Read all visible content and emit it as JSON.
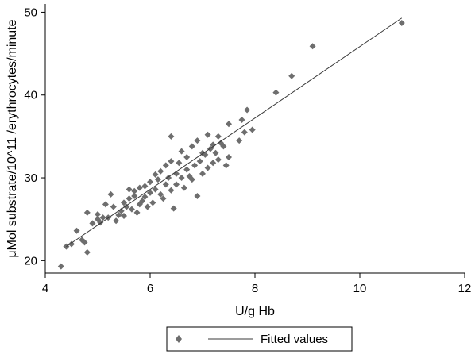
{
  "chart_data": {
    "type": "scatter",
    "title": "",
    "xlabel": "U/g Hb",
    "ylabel": "μMol substrate/10^11 /erythrocytes/minute",
    "xlim": [
      4,
      12
    ],
    "ylim": [
      18.5,
      51
    ],
    "x_ticks": [
      "4",
      "6",
      "8",
      "10",
      "12"
    ],
    "y_ticks": [
      "20",
      "30",
      "40",
      "50"
    ],
    "grid": false,
    "legend_position": "bottom",
    "marker_color": "#6e6e6e",
    "line_color": "#3a3a3a",
    "series": [
      {
        "type": "scatter",
        "marker": "diamond",
        "points": [
          [
            4.3,
            19.3
          ],
          [
            4.4,
            21.7
          ],
          [
            4.5,
            22.0
          ],
          [
            4.6,
            23.6
          ],
          [
            4.7,
            22.5
          ],
          [
            4.75,
            22.2
          ],
          [
            4.8,
            21.0
          ],
          [
            4.8,
            25.8
          ],
          [
            4.9,
            24.5
          ],
          [
            5.0,
            25.0
          ],
          [
            5.0,
            25.6
          ],
          [
            5.05,
            24.6
          ],
          [
            5.1,
            25.2
          ],
          [
            5.15,
            26.8
          ],
          [
            5.2,
            25.2
          ],
          [
            5.25,
            28.0
          ],
          [
            5.3,
            26.5
          ],
          [
            5.35,
            24.8
          ],
          [
            5.4,
            25.5
          ],
          [
            5.45,
            26.0
          ],
          [
            5.5,
            25.4
          ],
          [
            5.5,
            27.0
          ],
          [
            5.55,
            26.5
          ],
          [
            5.6,
            27.5
          ],
          [
            5.6,
            28.6
          ],
          [
            5.65,
            26.2
          ],
          [
            5.7,
            27.8
          ],
          [
            5.7,
            28.4
          ],
          [
            5.75,
            25.8
          ],
          [
            5.8,
            26.8
          ],
          [
            5.8,
            28.8
          ],
          [
            5.85,
            27.2
          ],
          [
            5.9,
            29.0
          ],
          [
            5.9,
            27.7
          ],
          [
            5.95,
            26.5
          ],
          [
            6.0,
            28.2
          ],
          [
            6.0,
            29.5
          ],
          [
            6.05,
            27.0
          ],
          [
            6.1,
            28.6
          ],
          [
            6.1,
            30.4
          ],
          [
            6.15,
            29.8
          ],
          [
            6.2,
            28.0
          ],
          [
            6.2,
            30.8
          ],
          [
            6.25,
            27.5
          ],
          [
            6.3,
            29.2
          ],
          [
            6.3,
            31.5
          ],
          [
            6.35,
            30.0
          ],
          [
            6.4,
            28.5
          ],
          [
            6.4,
            32.0
          ],
          [
            6.4,
            35.0
          ],
          [
            6.45,
            26.3
          ],
          [
            6.5,
            30.5
          ],
          [
            6.5,
            29.2
          ],
          [
            6.55,
            31.8
          ],
          [
            6.6,
            30.0
          ],
          [
            6.6,
            33.2
          ],
          [
            6.65,
            28.8
          ],
          [
            6.7,
            31.0
          ],
          [
            6.7,
            32.5
          ],
          [
            6.75,
            30.2
          ],
          [
            6.8,
            33.8
          ],
          [
            6.8,
            29.8
          ],
          [
            6.85,
            31.5
          ],
          [
            6.9,
            27.8
          ],
          [
            6.9,
            34.5
          ],
          [
            6.95,
            32.0
          ],
          [
            7.0,
            30.5
          ],
          [
            7.0,
            33.0
          ],
          [
            7.05,
            32.8
          ],
          [
            7.1,
            31.2
          ],
          [
            7.1,
            35.2
          ],
          [
            7.15,
            33.5
          ],
          [
            7.2,
            34.0
          ],
          [
            7.2,
            31.8
          ],
          [
            7.25,
            33.0
          ],
          [
            7.3,
            35.0
          ],
          [
            7.3,
            32.2
          ],
          [
            7.35,
            34.2
          ],
          [
            7.4,
            33.8
          ],
          [
            7.45,
            31.5
          ],
          [
            7.5,
            32.5
          ],
          [
            7.5,
            36.5
          ],
          [
            7.7,
            34.5
          ],
          [
            7.75,
            37.0
          ],
          [
            7.8,
            35.5
          ],
          [
            7.85,
            38.2
          ],
          [
            7.95,
            35.8
          ],
          [
            8.4,
            40.3
          ],
          [
            8.7,
            42.3
          ],
          [
            9.1,
            45.9
          ],
          [
            10.8,
            48.7
          ]
        ]
      },
      {
        "type": "line",
        "name": "Fitted values",
        "points": [
          [
            4.4,
            21.7
          ],
          [
            10.8,
            49.3
          ]
        ]
      }
    ]
  }
}
